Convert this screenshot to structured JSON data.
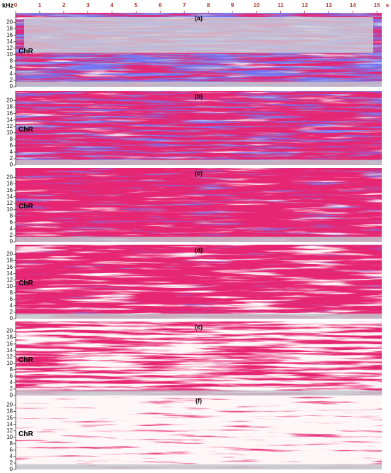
{
  "chart_data": [
    {
      "type": "spectrogram",
      "panel_label": "(a)",
      "annotation": "ChR",
      "y_label": "kHz",
      "x_unit": "s",
      "xlim": [
        0,
        15.2
      ],
      "xticks": [
        0,
        1,
        2,
        3,
        4,
        5,
        6,
        7,
        8,
        9,
        10,
        11,
        12,
        13,
        14,
        15
      ],
      "ylim": [
        0,
        23
      ],
      "yticks": [
        0,
        2,
        4,
        6,
        8,
        10,
        12,
        14,
        16,
        18,
        20
      ]
    },
    {
      "type": "spectrogram",
      "panel_label": "(b)",
      "annotation": "ChR",
      "xlim": [
        0,
        15.2
      ],
      "ylim": [
        0,
        23
      ],
      "yticks": [
        0,
        2,
        4,
        6,
        8,
        10,
        12,
        14,
        16,
        18,
        20
      ]
    },
    {
      "type": "spectrogram",
      "panel_label": "(c)",
      "annotation": "ChR",
      "xlim": [
        0,
        15.2
      ],
      "ylim": [
        0,
        23
      ],
      "yticks": [
        0,
        2,
        4,
        6,
        8,
        10,
        12,
        14,
        16,
        18,
        20
      ]
    },
    {
      "type": "spectrogram",
      "panel_label": "(d)",
      "annotation": "ChR",
      "xlim": [
        0,
        15.2
      ],
      "ylim": [
        0,
        23
      ],
      "yticks": [
        0,
        2,
        4,
        6,
        8,
        10,
        12,
        14,
        16,
        18,
        20
      ]
    },
    {
      "type": "spectrogram",
      "panel_label": "(e)",
      "annotation": "ChR",
      "xlim": [
        0,
        15.2
      ],
      "ylim": [
        0,
        23
      ],
      "yticks": [
        0,
        2,
        4,
        6,
        8,
        10,
        12,
        14,
        16,
        18,
        20
      ]
    },
    {
      "type": "spectrogram",
      "panel_label": "(f)",
      "annotation": "ChR",
      "xlim": [
        0,
        15.2
      ],
      "ylim": [
        0,
        23
      ],
      "yticks": [
        0,
        2,
        4,
        6,
        8,
        10,
        12,
        14,
        16,
        18,
        20
      ]
    }
  ]
}
